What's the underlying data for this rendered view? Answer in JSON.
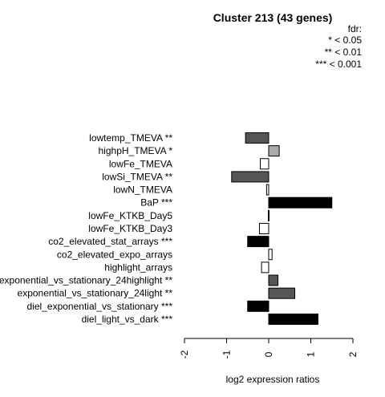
{
  "chart_data": {
    "type": "bar",
    "orientation": "horizontal",
    "title": "Cluster 213 (43 genes)",
    "legend": {
      "title": "fdr:",
      "entries": [
        "* < 0.05",
        "** < 0.01",
        "*** < 0.001"
      ],
      "position": "top-right"
    },
    "xlabel": "log2 expression ratios",
    "xlim": [
      -2,
      2
    ],
    "xticks": [
      "-2",
      "-1",
      "0",
      "1",
      "2"
    ],
    "xtick_values": [
      -2,
      -1,
      0,
      1,
      2
    ],
    "categories": [
      "lowtemp_TMEVA **",
      "highpH_TMEVA *",
      "lowFe_TMEVA",
      "lowSi_TMEVA **",
      "lowN_TMEVA",
      "BaP ***",
      "lowFe_KTKB_Day5",
      "lowFe_KTKB_Day3",
      "co2_elevated_stat_arrays ***",
      "co2_elevated_expo_arrays",
      "highlight_arrays",
      "exponential_vs_stationary_24highlight **",
      "exponential_vs_stationary_24light **",
      "diel_exponential_vs_stationary ***",
      "diel_light_vs_dark ***"
    ],
    "values": [
      -0.55,
      0.25,
      -0.2,
      -0.88,
      -0.05,
      1.5,
      -0.01,
      -0.22,
      -0.5,
      0.08,
      -0.17,
      0.22,
      0.62,
      -0.5,
      1.17
    ],
    "colors": [
      "#555555",
      "#aaaaaa",
      "#ffffff",
      "#555555",
      "#ffffff",
      "#000000",
      "#ffffff",
      "#ffffff",
      "#000000",
      "#ffffff",
      "#ffffff",
      "#555555",
      "#555555",
      "#000000",
      "#000000"
    ],
    "grid": false
  }
}
